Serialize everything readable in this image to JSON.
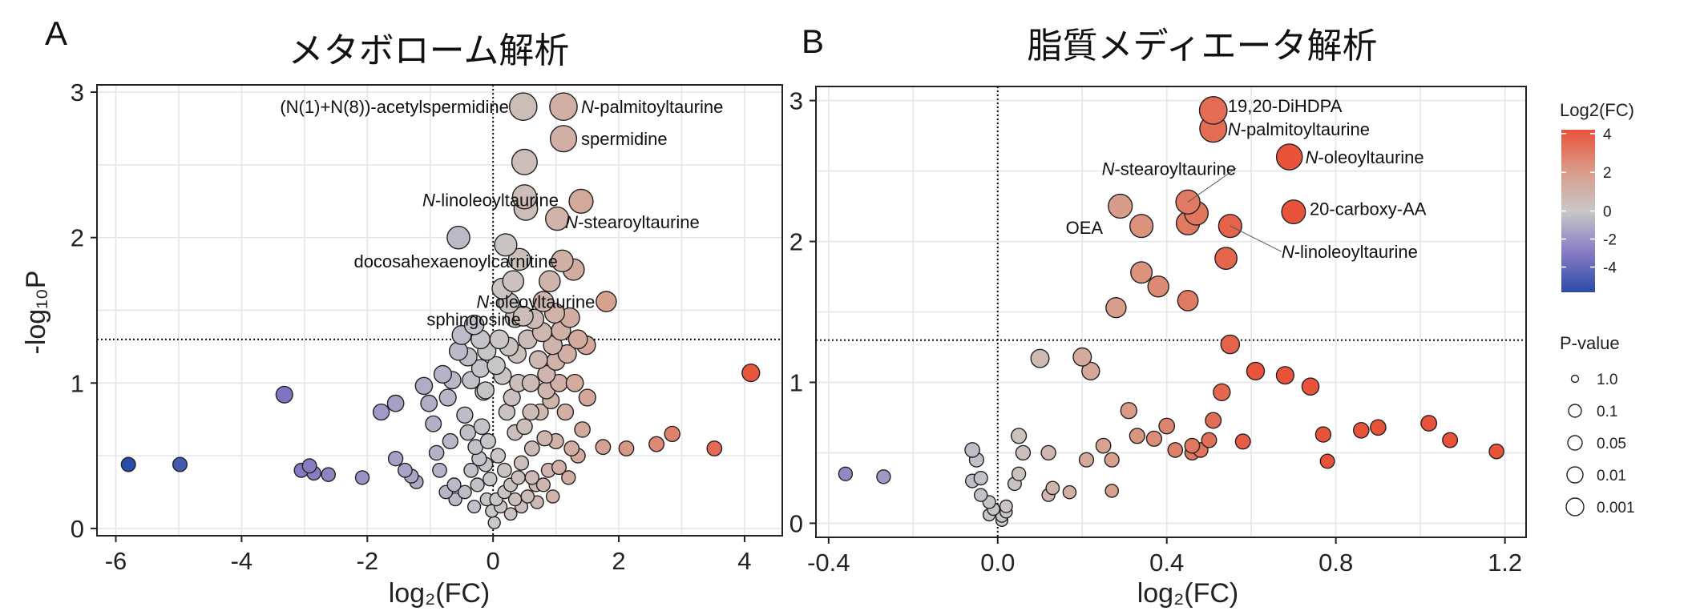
{
  "legend": {
    "color_title": "Log2(FC)",
    "color_ticks": [
      "4",
      "2",
      "0",
      "-2",
      "-4"
    ],
    "color_range": [
      -5.8,
      4.2
    ],
    "color_stops": [
      "#2b4ba8",
      "#8a7cc4",
      "#c8c8c8",
      "#d99a86",
      "#e9533a"
    ],
    "size_title": "P-value",
    "size_labels": [
      "1.0",
      "0.1",
      "0.05",
      "0.01",
      "0.001"
    ]
  },
  "chart_data": [
    {
      "type": "scatter",
      "panel": "A",
      "title": "メタボローム解析",
      "xlabel": "log₂(FC)",
      "ylabel": "-log₁₀P",
      "xlim": [
        -6.3,
        4.6
      ],
      "ylim": [
        -0.05,
        3.05
      ],
      "x_ticks": [
        -6,
        -4,
        -2,
        0,
        2,
        4
      ],
      "y_ticks": [
        0,
        1,
        2,
        3
      ],
      "x_tick_labels": [
        "-6",
        "-4",
        "-2",
        "0",
        "2",
        "4"
      ],
      "y_tick_labels": [
        "0",
        "1",
        "2",
        "3"
      ],
      "grid": true,
      "threshold_y": 1.3,
      "threshold_x": 0,
      "points": [
        [
          -5.8,
          0.44
        ],
        [
          -4.98,
          0.44
        ],
        [
          -3.32,
          0.92
        ],
        [
          -3.05,
          0.4
        ],
        [
          -2.92,
          0.43
        ],
        [
          -2.85,
          0.38
        ],
        [
          -2.62,
          0.37
        ],
        [
          -2.08,
          0.35
        ],
        [
          -1.78,
          0.8
        ],
        [
          -1.55,
          0.86
        ],
        [
          -1.55,
          0.48
        ],
        [
          -1.4,
          0.4
        ],
        [
          -1.3,
          0.36
        ],
        [
          -1.22,
          0.32
        ],
        [
          -1.1,
          0.98
        ],
        [
          -1.02,
          0.86
        ],
        [
          -0.95,
          0.72
        ],
        [
          -0.9,
          0.52
        ],
        [
          -0.85,
          0.4
        ],
        [
          -0.8,
          1.06
        ],
        [
          -0.72,
          0.9
        ],
        [
          -0.68,
          0.6
        ],
        [
          -0.62,
          0.3
        ],
        [
          -0.55,
          1.22
        ],
        [
          -0.5,
          1.33
        ],
        [
          -0.45,
          0.78
        ],
        [
          -0.4,
          0.66
        ],
        [
          -0.35,
          1.02
        ],
        [
          -0.3,
          1.4
        ],
        [
          -0.28,
          0.56
        ],
        [
          -0.25,
          0.3
        ],
        [
          -0.2,
          1.1
        ],
        [
          -0.18,
          0.7
        ],
        [
          -0.15,
          0.94
        ],
        [
          -0.12,
          0.44
        ],
        [
          -0.1,
          0.2
        ],
        [
          -0.08,
          0.6
        ],
        [
          -0.05,
          0.34
        ],
        [
          -0.02,
          0.12
        ],
        [
          -0.55,
          2.0
        ],
        [
          -0.1,
          1.22
        ],
        [
          -0.2,
          1.3
        ],
        [
          -0.4,
          1.18
        ],
        [
          -0.65,
          1.02
        ],
        [
          0.02,
          0.04
        ],
        [
          0.05,
          0.2
        ],
        [
          0.08,
          0.5
        ],
        [
          0.1,
          1.3
        ],
        [
          0.15,
          1.05
        ],
        [
          0.18,
          0.4
        ],
        [
          0.2,
          1.95
        ],
        [
          0.22,
          0.8
        ],
        [
          0.25,
          1.55
        ],
        [
          0.28,
          0.3
        ],
        [
          0.32,
          1.7
        ],
        [
          0.35,
          0.66
        ],
        [
          0.38,
          1.2
        ],
        [
          0.4,
          1.0
        ],
        [
          0.42,
          1.85
        ],
        [
          0.45,
          0.45
        ],
        [
          0.48,
          1.46
        ],
        [
          0.5,
          0.7
        ],
        [
          0.52,
          2.2
        ],
        [
          0.55,
          1.3
        ],
        [
          0.5,
          2.28
        ],
        [
          0.5,
          2.52
        ],
        [
          0.48,
          2.9
        ],
        [
          0.6,
          1.0
        ],
        [
          0.62,
          0.55
        ],
        [
          0.65,
          1.44
        ],
        [
          0.68,
          0.3
        ],
        [
          0.72,
          1.16
        ],
        [
          0.75,
          0.8
        ],
        [
          0.78,
          1.35
        ],
        [
          0.8,
          1.56
        ],
        [
          0.82,
          0.62
        ],
        [
          0.85,
          1.06
        ],
        [
          0.88,
          0.4
        ],
        [
          0.9,
          1.7
        ],
        [
          0.92,
          0.88
        ],
        [
          0.95,
          1.26
        ],
        [
          0.98,
          1.48
        ],
        [
          1.0,
          0.6
        ],
        [
          1.02,
          2.13
        ],
        [
          1.05,
          1.0
        ],
        [
          1.08,
          1.36
        ],
        [
          1.1,
          1.84
        ],
        [
          1.12,
          2.68
        ],
        [
          1.15,
          0.8
        ],
        [
          1.18,
          1.2
        ],
        [
          1.22,
          1.45
        ],
        [
          1.25,
          0.55
        ],
        [
          1.28,
          1.78
        ],
        [
          1.3,
          1.0
        ],
        [
          1.35,
          1.3
        ],
        [
          1.4,
          2.25
        ],
        [
          1.42,
          0.68
        ],
        [
          1.48,
          1.26
        ],
        [
          1.5,
          0.9
        ],
        [
          1.12,
          2.9
        ],
        [
          1.8,
          1.56
        ],
        [
          1.75,
          0.56
        ],
        [
          2.12,
          0.55
        ],
        [
          2.6,
          0.58
        ],
        [
          2.85,
          0.65
        ],
        [
          3.52,
          0.55
        ],
        [
          4.1,
          1.07
        ],
        [
          0.12,
          0.15
        ],
        [
          0.18,
          0.25
        ],
        [
          0.28,
          0.1
        ],
        [
          0.35,
          0.2
        ],
        [
          0.45,
          0.15
        ],
        [
          0.55,
          0.22
        ],
        [
          0.62,
          0.35
        ],
        [
          0.7,
          0.18
        ],
        [
          0.8,
          0.3
        ],
        [
          0.95,
          0.22
        ],
        [
          1.05,
          0.42
        ],
        [
          1.2,
          0.35
        ],
        [
          1.35,
          0.5
        ],
        [
          -0.3,
          0.15
        ],
        [
          -0.45,
          0.25
        ],
        [
          -0.6,
          0.2
        ],
        [
          -0.75,
          0.25
        ],
        [
          0.3,
          0.9
        ],
        [
          0.4,
          0.35
        ],
        [
          0.6,
          0.8
        ],
        [
          0.85,
          0.95
        ],
        [
          1.0,
          1.15
        ],
        [
          0.25,
          1.25
        ],
        [
          0.35,
          1.45
        ],
        [
          0.15,
          1.65
        ],
        [
          0.05,
          1.12
        ],
        [
          -0.12,
          0.95
        ],
        [
          -0.22,
          0.48
        ],
        [
          -0.35,
          0.4
        ]
      ],
      "annotations": [
        {
          "text": "(N(1)+N(8))-acetylspermidine",
          "x": 0.48,
          "y": 2.9
        },
        {
          "text": "N-palmitoyltaurine",
          "x": 1.12,
          "y": 2.9
        },
        {
          "text": "spermidine",
          "x": 1.12,
          "y": 2.68
        },
        {
          "text": "N-linoleoyltaurine",
          "x": 1.4,
          "y": 2.25
        },
        {
          "text": "N-stearoyltaurine",
          "x": 1.02,
          "y": 2.13
        },
        {
          "text": "docosahexaenoylcarnitine",
          "x": 0.2,
          "y": 1.95
        },
        {
          "text": "N-oleoyltaurine",
          "x": 1.8,
          "y": 1.56
        },
        {
          "text": "sphingosine",
          "x": 0.25,
          "y": 1.55
        }
      ]
    },
    {
      "type": "scatter",
      "panel": "B",
      "title": "脂質メディエータ解析",
      "xlabel": "log₂(FC)",
      "ylabel": "",
      "xlim": [
        -0.43,
        1.25
      ],
      "ylim": [
        -0.1,
        3.1
      ],
      "x_ticks": [
        -0.4,
        0.0,
        0.4,
        0.8,
        1.2
      ],
      "y_ticks": [
        0,
        1,
        2,
        3
      ],
      "x_tick_labels": [
        "-0.4",
        "0.0",
        "0.4",
        "0.8",
        "1.2"
      ],
      "y_tick_labels": [
        "0",
        "1",
        "2",
        "3"
      ],
      "grid": true,
      "threshold_y": 1.3,
      "threshold_x": 0,
      "points": [
        [
          -0.36,
          0.35
        ],
        [
          -0.27,
          0.33
        ],
        [
          -0.06,
          0.52
        ],
        [
          -0.05,
          0.45
        ],
        [
          -0.06,
          0.3
        ],
        [
          -0.04,
          0.32
        ],
        [
          -0.04,
          0.2
        ],
        [
          -0.02,
          0.15
        ],
        [
          -0.01,
          0.1
        ],
        [
          0.01,
          0.02
        ],
        [
          0.02,
          0.08
        ],
        [
          0.02,
          0.12
        ],
        [
          0.01,
          0.05
        ],
        [
          -0.02,
          0.06
        ],
        [
          0.04,
          0.28
        ],
        [
          0.05,
          0.35
        ],
        [
          0.05,
          0.62
        ],
        [
          0.06,
          0.5
        ],
        [
          0.1,
          1.17
        ],
        [
          0.12,
          0.5
        ],
        [
          0.12,
          0.2
        ],
        [
          0.13,
          0.25
        ],
        [
          0.17,
          0.22
        ],
        [
          0.2,
          1.18
        ],
        [
          0.21,
          0.45
        ],
        [
          0.22,
          1.08
        ],
        [
          0.25,
          0.55
        ],
        [
          0.27,
          0.45
        ],
        [
          0.27,
          0.23
        ],
        [
          0.31,
          0.8
        ],
        [
          0.33,
          0.62
        ],
        [
          0.37,
          0.6
        ],
        [
          0.4,
          0.69
        ],
        [
          0.42,
          0.52
        ],
        [
          0.46,
          0.55
        ],
        [
          0.46,
          0.5
        ],
        [
          0.48,
          0.52
        ],
        [
          0.5,
          0.59
        ],
        [
          0.51,
          0.73
        ],
        [
          0.53,
          0.93
        ],
        [
          0.55,
          1.27
        ],
        [
          0.58,
          0.58
        ],
        [
          0.61,
          1.08
        ],
        [
          0.68,
          1.05
        ],
        [
          0.74,
          0.97
        ],
        [
          0.77,
          0.63
        ],
        [
          0.78,
          0.44
        ],
        [
          0.86,
          0.66
        ],
        [
          0.9,
          0.68
        ],
        [
          1.02,
          0.71
        ],
        [
          1.07,
          0.59
        ],
        [
          1.18,
          0.51
        ],
        [
          0.28,
          1.53
        ],
        [
          0.38,
          1.68
        ],
        [
          0.45,
          1.58
        ],
        [
          0.34,
          1.78
        ],
        [
          0.54,
          1.88
        ],
        [
          0.29,
          2.25
        ],
        [
          0.34,
          2.11
        ],
        [
          0.45,
          2.28
        ],
        [
          0.47,
          2.2
        ],
        [
          0.45,
          2.13
        ],
        [
          0.55,
          2.11
        ],
        [
          0.7,
          2.21
        ],
        [
          0.69,
          2.6
        ],
        [
          0.51,
          2.8
        ],
        [
          0.51,
          2.93
        ]
      ],
      "annotations": [
        {
          "text": "19,20-DiHDPA",
          "x": 0.51,
          "y": 2.93
        },
        {
          "text": "N-palmitoyltaurine",
          "x": 0.51,
          "y": 2.8
        },
        {
          "text": "N-oleoyltaurine",
          "x": 0.69,
          "y": 2.6
        },
        {
          "text": "N-stearoyltaurine",
          "x": 0.45,
          "y": 2.28
        },
        {
          "text": "20-carboxy-AA",
          "x": 0.7,
          "y": 2.21
        },
        {
          "text": "OEA",
          "x": 0.34,
          "y": 2.11
        },
        {
          "text": "N-linoleoyltaurine",
          "x": 0.55,
          "y": 2.11
        }
      ]
    }
  ]
}
